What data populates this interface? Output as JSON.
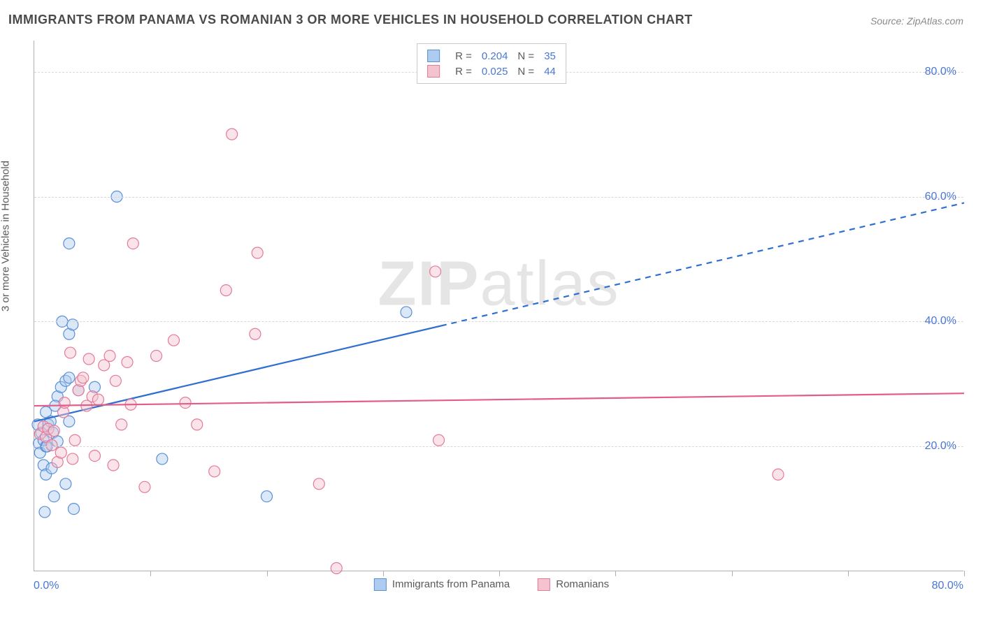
{
  "title": "IMMIGRANTS FROM PANAMA VS ROMANIAN 3 OR MORE VEHICLES IN HOUSEHOLD CORRELATION CHART",
  "source": "Source: ZipAtlas.com",
  "ylabel": "3 or more Vehicles in Household",
  "watermark_a": "ZIP",
  "watermark_b": "atlas",
  "chart": {
    "type": "scatter",
    "xlim": [
      0,
      80
    ],
    "ylim": [
      0,
      85
    ],
    "xticks_visible": [
      0,
      10,
      20,
      30,
      40,
      50,
      60,
      70,
      80
    ],
    "yticks": [
      20,
      40,
      60,
      80
    ],
    "xaxis_origin_label": "0.0%",
    "xaxis_max_label": "80.0%",
    "ytick_labels": [
      "20.0%",
      "40.0%",
      "60.0%",
      "80.0%"
    ],
    "grid_color": "#d8d8d8",
    "background_color": "#ffffff",
    "axis_color": "#b0b0b0",
    "marker_radius": 8,
    "trend_line_width": 2.2,
    "series": [
      {
        "id": "panama",
        "label": "Immigrants from Panama",
        "fill": "#aeccf0",
        "stroke": "#5b8fd6",
        "trend_color": "#2f6fd0",
        "trend_solid_until_x": 35,
        "trend": {
          "x1": 0,
          "y1": 24,
          "x2": 80,
          "y2": 59
        },
        "r_value": "0.204",
        "n_value": "35",
        "points": [
          [
            0.4,
            20.5
          ],
          [
            0.6,
            22.2
          ],
          [
            0.8,
            21.0
          ],
          [
            0.5,
            19.0
          ],
          [
            1.0,
            20.0
          ],
          [
            1.2,
            23.5
          ],
          [
            1.4,
            24.0
          ],
          [
            1.0,
            25.5
          ],
          [
            2.0,
            28.0
          ],
          [
            2.3,
            29.5
          ],
          [
            2.7,
            30.5
          ],
          [
            1.8,
            26.5
          ],
          [
            0.8,
            17.0
          ],
          [
            1.0,
            15.5
          ],
          [
            1.5,
            16.5
          ],
          [
            2.7,
            14.0
          ],
          [
            0.9,
            9.5
          ],
          [
            1.7,
            12.0
          ],
          [
            3.4,
            10.0
          ],
          [
            3.0,
            24.0
          ],
          [
            3.8,
            29.0
          ],
          [
            5.2,
            29.5
          ],
          [
            3.0,
            38.0
          ],
          [
            3.3,
            39.5
          ],
          [
            2.4,
            40.0
          ],
          [
            3.0,
            52.5
          ],
          [
            7.1,
            60.0
          ],
          [
            11.0,
            18.0
          ],
          [
            20.0,
            12.0
          ],
          [
            32.0,
            41.5
          ],
          [
            3.0,
            31.0
          ],
          [
            1.6,
            22.2
          ],
          [
            1.1,
            20.0
          ],
          [
            0.3,
            23.5
          ],
          [
            2.0,
            20.8
          ]
        ]
      },
      {
        "id": "romanians",
        "label": "Romanians",
        "fill": "#f4c3cf",
        "stroke": "#e47a9a",
        "trend_color": "#e25d88",
        "trend_solid_until_x": 80,
        "trend": {
          "x1": 0,
          "y1": 26.5,
          "x2": 80,
          "y2": 28.5
        },
        "r_value": "0.025",
        "n_value": "44",
        "points": [
          [
            0.5,
            22.0
          ],
          [
            0.8,
            23.2
          ],
          [
            1.0,
            21.5
          ],
          [
            1.2,
            22.8
          ],
          [
            1.5,
            20.2
          ],
          [
            1.7,
            22.5
          ],
          [
            2.0,
            17.5
          ],
          [
            2.3,
            19.0
          ],
          [
            2.5,
            25.5
          ],
          [
            2.6,
            27.0
          ],
          [
            3.3,
            18.0
          ],
          [
            3.5,
            21.0
          ],
          [
            3.8,
            29.0
          ],
          [
            4.0,
            30.5
          ],
          [
            4.2,
            31.0
          ],
          [
            4.5,
            26.5
          ],
          [
            4.7,
            34.0
          ],
          [
            5.0,
            28.0
          ],
          [
            5.2,
            18.5
          ],
          [
            5.5,
            27.5
          ],
          [
            6.0,
            33.0
          ],
          [
            6.5,
            34.5
          ],
          [
            6.8,
            17.0
          ],
          [
            7.0,
            30.5
          ],
          [
            7.5,
            23.5
          ],
          [
            8.0,
            33.5
          ],
          [
            8.3,
            26.7
          ],
          [
            8.5,
            52.5
          ],
          [
            9.5,
            13.5
          ],
          [
            10.5,
            34.5
          ],
          [
            12.0,
            37.0
          ],
          [
            13.0,
            27.0
          ],
          [
            14.0,
            23.5
          ],
          [
            15.5,
            16.0
          ],
          [
            16.5,
            45.0
          ],
          [
            17.0,
            70.0
          ],
          [
            19.0,
            38.0
          ],
          [
            19.2,
            51.0
          ],
          [
            24.5,
            14.0
          ],
          [
            26.0,
            0.5
          ],
          [
            34.5,
            48.0
          ],
          [
            34.8,
            21.0
          ],
          [
            64.0,
            15.5
          ],
          [
            3.1,
            35.0
          ]
        ]
      }
    ]
  },
  "top_legend": {
    "r_label": "R =",
    "n_label": "N ="
  }
}
